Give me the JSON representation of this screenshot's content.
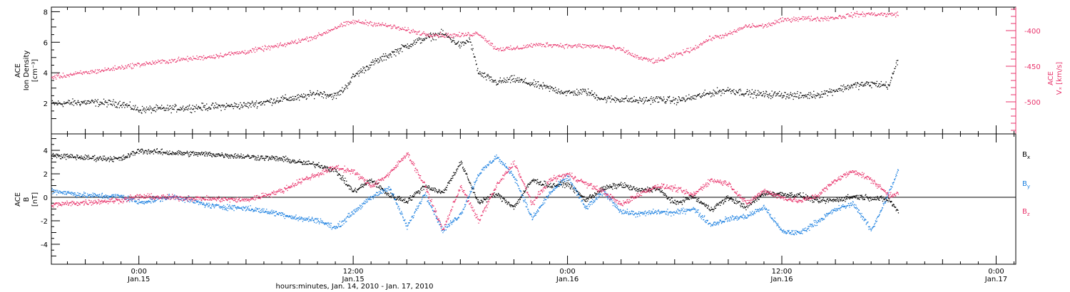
{
  "colors": {
    "black": "#000000",
    "blue": "#1a7fe0",
    "pink": "#e8336b"
  },
  "x_axis": {
    "title": "hours:minutes, Jan. 14, 2010 - Jan. 17, 2010",
    "range_hours": [
      -4.9,
      49.1
    ],
    "ticks": [
      {
        "hours": 0,
        "time": "0:00",
        "date": "Jan.15"
      },
      {
        "hours": 12,
        "time": "12:00",
        "date": "Jan.15"
      },
      {
        "hours": 24,
        "time": "0:00",
        "date": "Jan.16"
      },
      {
        "hours": 36,
        "time": "12:00",
        "date": "Jan.16"
      },
      {
        "hours": 48,
        "time": "0:00",
        "date": "Jan.17"
      }
    ]
  },
  "top_panel": {
    "left_label": [
      "ACE",
      "Ion Density",
      "[cm⁻³]"
    ],
    "right_label": [
      "ACE",
      "Vₓ [km/s]"
    ],
    "left_ylim": [
      0,
      8.3
    ],
    "left_ticks": [
      "2",
      "4",
      "6",
      "8"
    ],
    "right_ylim": [
      -545,
      -367
    ],
    "right_ticks": [
      "-400",
      "-450",
      "-500"
    ]
  },
  "bottom_panel": {
    "left_label": [
      "ACE",
      "B",
      "[nT]"
    ],
    "ylim": [
      -5.7,
      5.4
    ],
    "ticks": [
      "4",
      "2",
      "0",
      "-2",
      "-4"
    ],
    "legend": [
      {
        "label": "B",
        "sub": "x",
        "color": "#000000"
      },
      {
        "label": "B",
        "sub": "y",
        "color": "#1a7fe0"
      },
      {
        "label": "B",
        "sub": "z",
        "color": "#e8336b"
      }
    ]
  },
  "chart_data": [
    {
      "type": "scatter",
      "panel": "top",
      "xlim": [
        -4.9,
        49.1
      ],
      "series": [
        {
          "name": "Ion Density",
          "axis": "left",
          "color": "#000000",
          "unit": "cm-3",
          "x": [
            -4.9,
            -3,
            -1,
            0,
            2,
            4,
            6,
            8,
            9,
            10,
            11,
            11.5,
            12,
            13,
            14,
            15,
            16,
            17,
            18,
            18.5,
            19,
            20,
            21,
            22,
            23,
            24,
            25,
            26,
            27,
            28,
            29,
            30,
            31,
            32,
            33,
            34,
            35,
            36,
            37,
            38,
            39,
            40,
            41,
            42,
            42.5
          ],
          "y": [
            2.0,
            2.1,
            2.0,
            1.6,
            1.7,
            1.8,
            1.9,
            2.3,
            2.4,
            2.7,
            2.5,
            3.0,
            3.8,
            4.6,
            5.2,
            5.8,
            6.3,
            6.6,
            5.8,
            6.2,
            4.0,
            3.4,
            3.6,
            3.3,
            3.0,
            2.7,
            2.8,
            2.3,
            2.3,
            2.2,
            2.3,
            2.2,
            2.4,
            2.7,
            2.9,
            2.7,
            2.6,
            2.6,
            2.5,
            2.6,
            2.9,
            3.2,
            3.3,
            3.2,
            5.0
          ]
        },
        {
          "name": "Vx",
          "axis": "right",
          "color": "#e8336b",
          "unit": "km/s",
          "x": [
            -4.9,
            -2,
            0,
            2,
            4,
            6,
            8,
            10,
            11,
            12,
            13,
            14,
            15,
            16,
            17,
            18,
            19,
            20,
            21,
            22,
            23,
            24,
            25,
            26,
            27,
            28,
            29,
            30,
            31,
            32,
            33,
            34,
            35,
            36,
            37,
            38,
            39,
            40,
            41,
            42,
            42.5
          ],
          "y": [
            -465,
            -455,
            -447,
            -441,
            -436,
            -429,
            -420,
            -407,
            -395,
            -387,
            -389,
            -393,
            -399,
            -404,
            -406,
            -406,
            -403,
            -425,
            -425,
            -420,
            -419,
            -421,
            -421,
            -422,
            -426,
            -438,
            -443,
            -434,
            -425,
            -410,
            -405,
            -393,
            -393,
            -385,
            -382,
            -383,
            -381,
            -377,
            -376,
            -377,
            -376
          ]
        }
      ]
    },
    {
      "type": "scatter",
      "panel": "bottom",
      "xlim": [
        -4.9,
        49.1
      ],
      "series": [
        {
          "name": "Bx",
          "color": "#000000",
          "unit": "nT",
          "x": [
            -4.9,
            -3,
            -1,
            0,
            2,
            4,
            6,
            8,
            9,
            10,
            11,
            12,
            13,
            14,
            15,
            16,
            17,
            18,
            19,
            20,
            21,
            22,
            23,
            24,
            25,
            26,
            27,
            28,
            29,
            30,
            31,
            32,
            33,
            34,
            35,
            36,
            37,
            38,
            39,
            40,
            41,
            42,
            42.5
          ],
          "y": [
            3.6,
            3.4,
            3.3,
            4.0,
            3.8,
            3.7,
            3.5,
            3.3,
            3.0,
            2.8,
            2.3,
            0.5,
            1.5,
            0.2,
            -0.3,
            1.0,
            0.4,
            3.0,
            -0.4,
            0.3,
            -0.8,
            1.5,
            1.0,
            1.2,
            -0.2,
            0.8,
            1.1,
            0.6,
            0.8,
            -0.5,
            0.1,
            -1.0,
            0.0,
            -0.8,
            0.4,
            0.3,
            0.2,
            -0.3,
            -0.2,
            0.1,
            0.0,
            -0.2,
            -1.2
          ]
        },
        {
          "name": "By",
          "color": "#1a7fe0",
          "unit": "nT",
          "x": [
            -4.9,
            -3,
            -1,
            0,
            2,
            4,
            6,
            8,
            9,
            10,
            11,
            12,
            13,
            14,
            15,
            16,
            17,
            18,
            19,
            20,
            21,
            22,
            23,
            24,
            25,
            26,
            27,
            28,
            29,
            30,
            31,
            32,
            33,
            34,
            35,
            36,
            37,
            38,
            39,
            40,
            41,
            42,
            42.5
          ],
          "y": [
            0.6,
            0.2,
            0.1,
            -0.4,
            0.1,
            -0.7,
            -0.9,
            -1.4,
            -1.8,
            -1.9,
            -2.6,
            -1.2,
            0.0,
            0.9,
            -2.5,
            0.4,
            -2.8,
            -1.4,
            2.0,
            3.5,
            1.8,
            -1.8,
            0.4,
            1.8,
            -0.9,
            0.5,
            -1.2,
            -1.4,
            -1.2,
            -1.3,
            -0.9,
            -2.3,
            -1.8,
            -1.6,
            -0.8,
            -2.9,
            -3.0,
            -2.0,
            -1.0,
            -0.5,
            -2.8,
            0.5,
            2.3
          ]
        },
        {
          "name": "Bz",
          "color": "#e8336b",
          "unit": "nT",
          "x": [
            -4.9,
            -3,
            -1,
            0,
            2,
            4,
            6,
            8,
            9,
            10,
            11,
            12,
            13,
            14,
            15,
            16,
            17,
            18,
            19,
            20,
            21,
            22,
            23,
            24,
            25,
            26,
            27,
            28,
            29,
            30,
            31,
            32,
            33,
            34,
            35,
            36,
            37,
            38,
            39,
            40,
            41,
            42,
            42.5
          ],
          "y": [
            -0.6,
            -0.4,
            -0.2,
            0.1,
            0.0,
            -0.1,
            -0.2,
            0.6,
            1.4,
            2.0,
            2.6,
            2.2,
            1.0,
            2.0,
            3.8,
            1.0,
            -2.8,
            1.0,
            -2.0,
            1.0,
            3.0,
            -0.5,
            1.5,
            2.0,
            1.2,
            0.5,
            -0.6,
            0.3,
            1.0,
            0.8,
            0.2,
            1.5,
            1.2,
            -0.5,
            0.6,
            0.0,
            -0.3,
            0.2,
            1.5,
            2.3,
            1.5,
            0.2,
            0.4
          ]
        }
      ]
    }
  ]
}
